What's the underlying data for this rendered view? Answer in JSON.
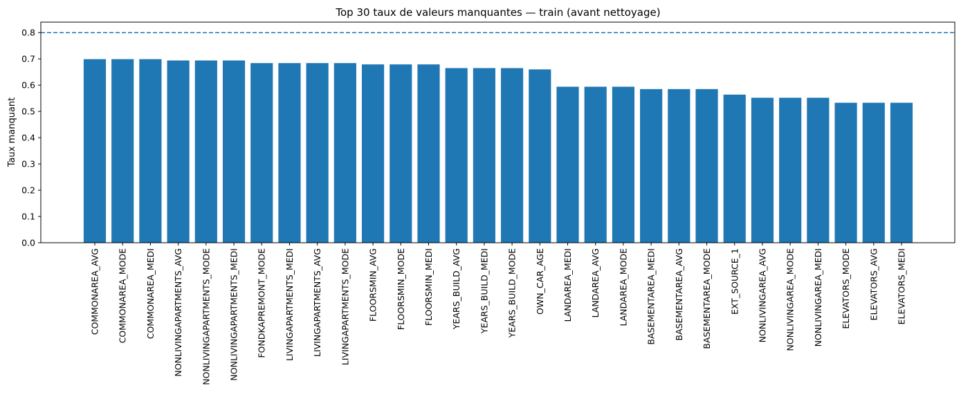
{
  "chart_data": {
    "type": "bar",
    "title": "Top 30 taux de valeurs manquantes — train (avant nettoyage)",
    "xlabel": "",
    "ylabel": "Taux manquant",
    "ylim": [
      0,
      0.84
    ],
    "yticks": [
      "0.0",
      "0.1",
      "0.2",
      "0.3",
      "0.4",
      "0.5",
      "0.6",
      "0.7",
      "0.8"
    ],
    "threshold": 0.8,
    "bar_color": "#1f77b4",
    "threshold_color": "#1f77b4",
    "categories": [
      "COMMONAREA_AVG",
      "COMMONAREA_MODE",
      "COMMONAREA_MEDI",
      "NONLIVINGAPARTMENTS_AVG",
      "NONLIVINGAPARTMENTS_MODE",
      "NONLIVINGAPARTMENTS_MEDI",
      "FONDKAPREMONT_MODE",
      "LIVINGAPARTMENTS_MEDI",
      "LIVINGAPARTMENTS_AVG",
      "LIVINGAPARTMENTS_MODE",
      "FLOORSMIN_AVG",
      "FLOORSMIN_MODE",
      "FLOORSMIN_MEDI",
      "YEARS_BUILD_AVG",
      "YEARS_BUILD_MEDI",
      "YEARS_BUILD_MODE",
      "OWN_CAR_AGE",
      "LANDAREA_MEDI",
      "LANDAREA_AVG",
      "LANDAREA_MODE",
      "BASEMENTAREA_MEDI",
      "BASEMENTAREA_AVG",
      "BASEMENTAREA_MODE",
      "EXT_SOURCE_1",
      "NONLIVINGAREA_AVG",
      "NONLIVINGAREA_MODE",
      "NONLIVINGAREA_MEDI",
      "ELEVATORS_MODE",
      "ELEVATORS_AVG",
      "ELEVATORS_MEDI"
    ],
    "values": [
      0.699,
      0.699,
      0.699,
      0.694,
      0.694,
      0.694,
      0.684,
      0.684,
      0.684,
      0.684,
      0.679,
      0.679,
      0.679,
      0.665,
      0.665,
      0.665,
      0.66,
      0.594,
      0.594,
      0.594,
      0.585,
      0.585,
      0.585,
      0.564,
      0.552,
      0.552,
      0.552,
      0.533,
      0.533,
      0.533
    ]
  }
}
